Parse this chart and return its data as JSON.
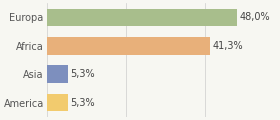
{
  "categories": [
    "America",
    "Asia",
    "Africa",
    "Europa"
  ],
  "values": [
    5.3,
    5.3,
    41.3,
    48.0
  ],
  "bar_colors": [
    "#f2cb6e",
    "#7d8fbe",
    "#e8b07a",
    "#a8be8c"
  ],
  "labels": [
    "5,3%",
    "5,3%",
    "41,3%",
    "48,0%"
  ],
  "background_color": "#f7f7f2",
  "bar_height": 0.62,
  "xlim": [
    0,
    58
  ],
  "label_fontsize": 7,
  "tick_fontsize": 7,
  "grid_ticks": [
    0,
    20,
    40
  ]
}
